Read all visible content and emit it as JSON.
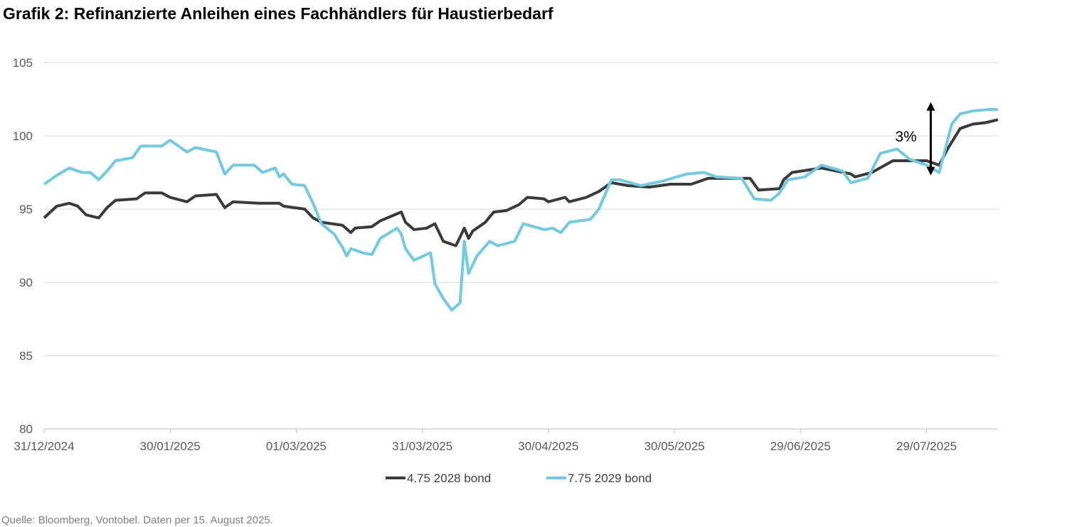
{
  "chart_data": {
    "type": "line",
    "title": "Grafik 2: Refinanzierte Anleihen eines Fachhändlers für Haustierbedarf",
    "xlabel": "",
    "ylabel": "",
    "ylim": [
      80,
      105
    ],
    "yticks": [
      "80",
      "85",
      "90",
      "95",
      "100",
      "105"
    ],
    "xlim": [
      "31/12/2024",
      "15/08/2025"
    ],
    "xticks": [
      "31/12/2024",
      "30/01/2025",
      "01/03/2025",
      "31/03/2025",
      "30/04/2025",
      "30/05/2025",
      "29/06/2025",
      "29/07/2025"
    ],
    "grid": "horizontal",
    "legend": "bottom",
    "annotation": {
      "text": "3%",
      "date": "30/07/2025",
      "from": 97.3,
      "to": 102.3
    },
    "series": [
      {
        "name": "4.75 2028 bond",
        "color": "#3a3a3a",
        "points": [
          [
            "31/12/2024",
            94.4
          ],
          [
            "03/01/2025",
            95.2
          ],
          [
            "06/01/2025",
            95.4
          ],
          [
            "08/01/2025",
            95.2
          ],
          [
            "10/01/2025",
            94.6
          ],
          [
            "13/01/2025",
            94.4
          ],
          [
            "15/01/2025",
            95.1
          ],
          [
            "17/01/2025",
            95.6
          ],
          [
            "22/01/2025",
            95.7
          ],
          [
            "24/01/2025",
            96.1
          ],
          [
            "28/01/2025",
            96.1
          ],
          [
            "30/01/2025",
            95.8
          ],
          [
            "03/02/2025",
            95.5
          ],
          [
            "05/02/2025",
            95.9
          ],
          [
            "10/02/2025",
            96.0
          ],
          [
            "12/02/2025",
            95.1
          ],
          [
            "14/02/2025",
            95.5
          ],
          [
            "20/02/2025",
            95.4
          ],
          [
            "25/02/2025",
            95.4
          ],
          [
            "26/02/2025",
            95.2
          ],
          [
            "03/03/2025",
            95.0
          ],
          [
            "05/03/2025",
            94.4
          ],
          [
            "07/03/2025",
            94.1
          ],
          [
            "12/03/2025",
            93.9
          ],
          [
            "14/03/2025",
            93.4
          ],
          [
            "15/03/2025",
            93.7
          ],
          [
            "19/03/2025",
            93.8
          ],
          [
            "21/03/2025",
            94.2
          ],
          [
            "26/03/2025",
            94.8
          ],
          [
            "27/03/2025",
            94.1
          ],
          [
            "29/03/2025",
            93.6
          ],
          [
            "01/04/2025",
            93.7
          ],
          [
            "03/04/2025",
            94.0
          ],
          [
            "05/04/2025",
            92.8
          ],
          [
            "08/04/2025",
            92.5
          ],
          [
            "10/04/2025",
            93.7
          ],
          [
            "11/04/2025",
            93.0
          ],
          [
            "12/04/2025",
            93.5
          ],
          [
            "15/04/2025",
            94.1
          ],
          [
            "17/04/2025",
            94.8
          ],
          [
            "20/04/2025",
            94.9
          ],
          [
            "23/04/2025",
            95.3
          ],
          [
            "25/04/2025",
            95.8
          ],
          [
            "29/04/2025",
            95.7
          ],
          [
            "30/04/2025",
            95.5
          ],
          [
            "04/05/2025",
            95.8
          ],
          [
            "05/05/2025",
            95.5
          ],
          [
            "09/05/2025",
            95.8
          ],
          [
            "12/05/2025",
            96.2
          ],
          [
            "15/05/2025",
            96.8
          ],
          [
            "19/05/2025",
            96.6
          ],
          [
            "24/05/2025",
            96.5
          ],
          [
            "29/05/2025",
            96.7
          ],
          [
            "03/06/2025",
            96.7
          ],
          [
            "07/06/2025",
            97.1
          ],
          [
            "10/06/2025",
            97.1
          ],
          [
            "17/06/2025",
            97.1
          ],
          [
            "19/06/2025",
            96.3
          ],
          [
            "24/06/2025",
            96.4
          ],
          [
            "25/06/2025",
            97.0
          ],
          [
            "27/06/2025",
            97.5
          ],
          [
            "04/07/2025",
            97.8
          ],
          [
            "11/07/2025",
            97.4
          ],
          [
            "12/07/2025",
            97.2
          ],
          [
            "16/07/2025",
            97.5
          ],
          [
            "21/07/2025",
            98.3
          ],
          [
            "25/07/2025",
            98.3
          ],
          [
            "29/07/2025",
            98.3
          ],
          [
            "01/08/2025",
            98.0
          ],
          [
            "03/08/2025",
            99.1
          ],
          [
            "06/08/2025",
            100.5
          ],
          [
            "09/08/2025",
            100.8
          ],
          [
            "12/08/2025",
            100.9
          ],
          [
            "15/08/2025",
            101.1
          ]
        ]
      },
      {
        "name": "7.75 2029 bond",
        "color": "#6ecbe0",
        "points": [
          [
            "31/12/2024",
            96.7
          ],
          [
            "03/01/2025",
            97.3
          ],
          [
            "06/01/2025",
            97.8
          ],
          [
            "09/01/2025",
            97.5
          ],
          [
            "11/01/2025",
            97.5
          ],
          [
            "13/01/2025",
            97.0
          ],
          [
            "15/01/2025",
            97.6
          ],
          [
            "17/01/2025",
            98.3
          ],
          [
            "21/01/2025",
            98.5
          ],
          [
            "23/01/2025",
            99.3
          ],
          [
            "28/01/2025",
            99.3
          ],
          [
            "30/01/2025",
            99.7
          ],
          [
            "03/02/2025",
            98.9
          ],
          [
            "05/02/2025",
            99.2
          ],
          [
            "10/02/2025",
            98.9
          ],
          [
            "12/02/2025",
            97.4
          ],
          [
            "14/02/2025",
            98.0
          ],
          [
            "19/02/2025",
            98.0
          ],
          [
            "21/02/2025",
            97.5
          ],
          [
            "24/02/2025",
            97.8
          ],
          [
            "25/02/2025",
            97.2
          ],
          [
            "26/02/2025",
            97.4
          ],
          [
            "28/02/2025",
            96.7
          ],
          [
            "03/03/2025",
            96.6
          ],
          [
            "05/03/2025",
            95.4
          ],
          [
            "07/03/2025",
            94.0
          ],
          [
            "10/03/2025",
            93.3
          ],
          [
            "12/03/2025",
            92.4
          ],
          [
            "13/03/2025",
            91.8
          ],
          [
            "14/03/2025",
            92.3
          ],
          [
            "17/03/2025",
            92.0
          ],
          [
            "19/03/2025",
            91.9
          ],
          [
            "21/03/2025",
            93.0
          ],
          [
            "25/03/2025",
            93.7
          ],
          [
            "26/03/2025",
            93.3
          ],
          [
            "27/03/2025",
            92.3
          ],
          [
            "29/03/2025",
            91.5
          ],
          [
            "01/04/2025",
            91.9
          ],
          [
            "02/04/2025",
            92.0
          ],
          [
            "03/04/2025",
            89.9
          ],
          [
            "05/04/2025",
            88.9
          ],
          [
            "07/04/2025",
            88.1
          ],
          [
            "09/04/2025",
            88.6
          ],
          [
            "10/04/2025",
            92.8
          ],
          [
            "11/04/2025",
            90.6
          ],
          [
            "13/04/2025",
            91.8
          ],
          [
            "16/04/2025",
            92.8
          ],
          [
            "18/04/2025",
            92.5
          ],
          [
            "22/04/2025",
            92.8
          ],
          [
            "24/04/2025",
            94.0
          ],
          [
            "29/04/2025",
            93.6
          ],
          [
            "01/05/2025",
            93.7
          ],
          [
            "03/05/2025",
            93.4
          ],
          [
            "05/05/2025",
            94.1
          ],
          [
            "10/05/2025",
            94.3
          ],
          [
            "12/05/2025",
            95.0
          ],
          [
            "15/05/2025",
            97.0
          ],
          [
            "17/05/2025",
            97.0
          ],
          [
            "22/05/2025",
            96.6
          ],
          [
            "27/05/2025",
            96.9
          ],
          [
            "02/06/2025",
            97.4
          ],
          [
            "06/06/2025",
            97.5
          ],
          [
            "09/06/2025",
            97.2
          ],
          [
            "15/06/2025",
            97.1
          ],
          [
            "18/06/2025",
            95.7
          ],
          [
            "22/06/2025",
            95.6
          ],
          [
            "24/06/2025",
            96.1
          ],
          [
            "26/06/2025",
            97.0
          ],
          [
            "30/06/2025",
            97.2
          ],
          [
            "04/07/2025",
            98.0
          ],
          [
            "09/07/2025",
            97.6
          ],
          [
            "11/07/2025",
            96.8
          ],
          [
            "15/07/2025",
            97.1
          ],
          [
            "18/07/2025",
            98.8
          ],
          [
            "22/07/2025",
            99.1
          ],
          [
            "25/07/2025",
            98.4
          ],
          [
            "29/07/2025",
            98.0
          ],
          [
            "01/08/2025",
            97.5
          ],
          [
            "04/08/2025",
            100.8
          ],
          [
            "06/08/2025",
            101.5
          ],
          [
            "09/08/2025",
            101.7
          ],
          [
            "13/08/2025",
            101.8
          ],
          [
            "15/08/2025",
            101.8
          ]
        ]
      }
    ]
  },
  "source": "Quelle: Bloomberg, Vontobel. Daten per 15. August 2025."
}
